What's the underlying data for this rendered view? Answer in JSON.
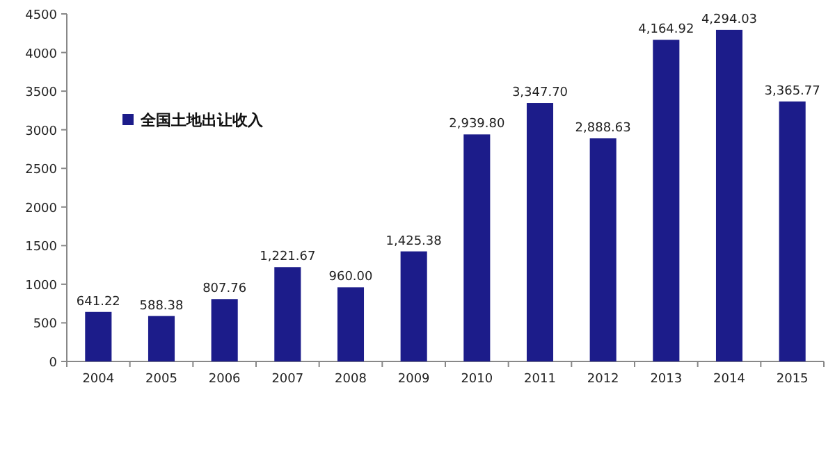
{
  "chart_data": {
    "type": "bar",
    "categories": [
      "2004",
      "2005",
      "2006",
      "2007",
      "2008",
      "2009",
      "2010",
      "2011",
      "2012",
      "2013",
      "2014",
      "2015"
    ],
    "series": [
      {
        "name": "全国土地出让收入",
        "color": "#1c1c8a",
        "values": [
          641.22,
          588.38,
          807.76,
          1221.67,
          960.0,
          1425.38,
          2939.8,
          3347.7,
          2888.63,
          4164.92,
          4294.03,
          3365.77
        ],
        "value_labels": [
          "641.22",
          "588.38",
          "807.76",
          "1,221.67",
          "960.00",
          "1,425.38",
          "2,939.80",
          "3,347.70",
          "2,888.63",
          "4,164.92",
          "4,294.03",
          "3,365.77"
        ]
      }
    ],
    "ylim": [
      0,
      4500
    ],
    "yticks": [
      0,
      500,
      1000,
      1500,
      2000,
      2500,
      3000,
      3500,
      4000,
      4500
    ],
    "legend": "top left"
  }
}
